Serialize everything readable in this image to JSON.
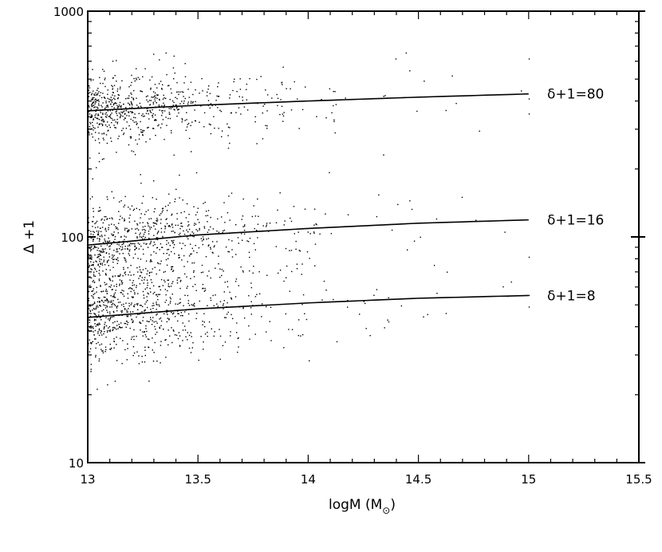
{
  "chart_data": {
    "type": "scatter",
    "title": "",
    "xlabel": {
      "main": "logM (M",
      "subscript": "⊙",
      "close": ")"
    },
    "ylabel": "Δ +1",
    "xlim": [
      13,
      15.5
    ],
    "ylim": [
      10,
      1000
    ],
    "yscale": "log",
    "grid": false,
    "x_ticks": [
      "13",
      "13.5",
      "14",
      "14.5",
      "15",
      "15.5"
    ],
    "y_ticks": [
      "10",
      "100",
      "1000"
    ],
    "curves": [
      {
        "label": "δ+1=80",
        "x": [
          13.0,
          13.5,
          14.0,
          14.5,
          15.0
        ],
        "y": [
          362,
          383,
          400,
          416,
          430
        ]
      },
      {
        "label": "δ+1=16",
        "x": [
          13.0,
          13.5,
          14.0,
          14.5,
          15.0
        ],
        "y": [
          92,
          102,
          109,
          115,
          119
        ]
      },
      {
        "label": "δ+1=8",
        "x": [
          13.0,
          13.5,
          14.0,
          14.5,
          15.0
        ],
        "y": [
          44,
          48,
          51,
          53.5,
          55
        ]
      }
    ],
    "scatter_groups": [
      {
        "center_curve": 0,
        "spread_dex": 0.075,
        "outlier_dex": 0.16,
        "count": 700
      },
      {
        "center_curve": 1,
        "spread_dex": 0.09,
        "outlier_dex": 0.2,
        "count": 760
      },
      {
        "center_curve": 2,
        "spread_dex": 0.1,
        "outlier_dex": 0.22,
        "count": 780
      }
    ],
    "points_note": "individual halo points: dense near logM 13, thinning toward logM 15"
  }
}
